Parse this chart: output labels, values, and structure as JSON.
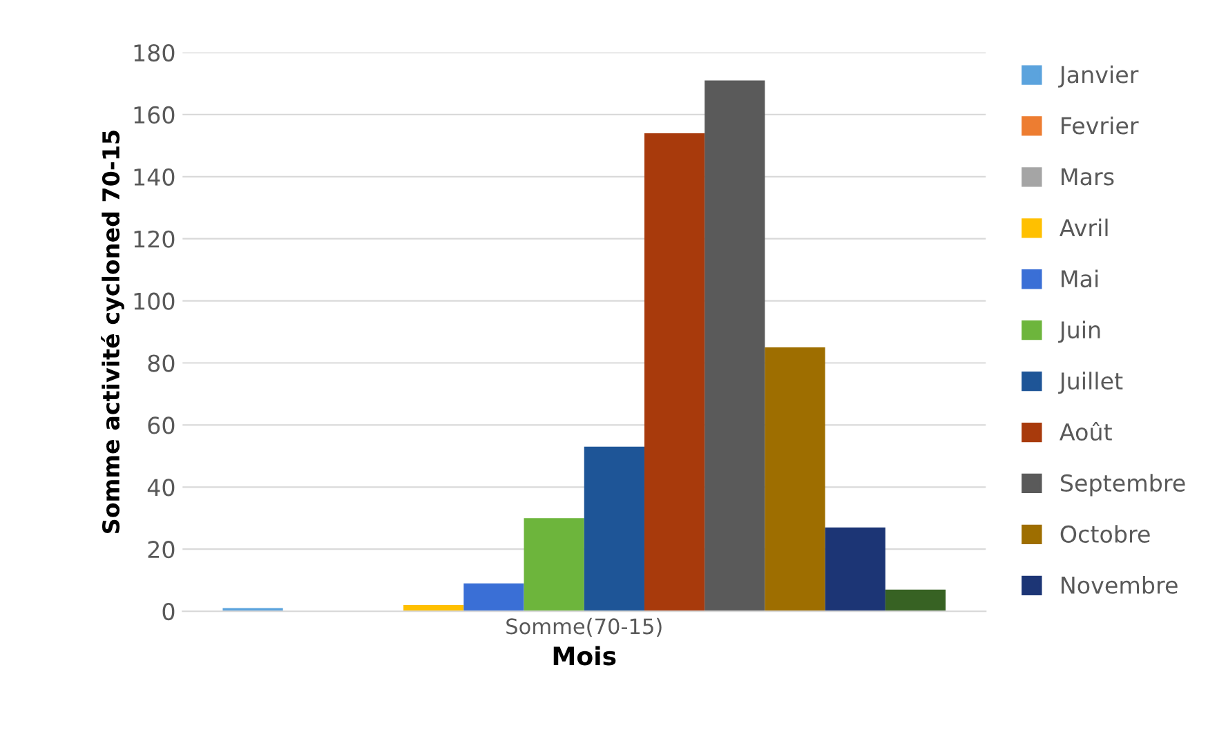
{
  "chart_data": {
    "type": "bar",
    "xlabel": "Mois",
    "ylabel": "Somme activité cycloned 70-15",
    "categories": [
      "Somme(70-15)"
    ],
    "series": [
      {
        "name": "Janvier",
        "color": "#5ba3dd",
        "values": [
          1
        ]
      },
      {
        "name": "Fevrier",
        "color": "#ed7d31",
        "values": [
          0
        ]
      },
      {
        "name": "Mars",
        "color": "#a5a5a5",
        "values": [
          0
        ]
      },
      {
        "name": "Avril",
        "color": "#ffc000",
        "values": [
          2
        ]
      },
      {
        "name": "Mai",
        "color": "#3a6fd6",
        "values": [
          9
        ]
      },
      {
        "name": "Juin",
        "color": "#6db53c",
        "values": [
          30
        ]
      },
      {
        "name": "Juillet",
        "color": "#1e5597",
        "values": [
          53
        ]
      },
      {
        "name": "Août",
        "color": "#a83a0c",
        "values": [
          154
        ]
      },
      {
        "name": "Septembre",
        "color": "#5a5a5a",
        "values": [
          171
        ]
      },
      {
        "name": "Octobre",
        "color": "#9e6e00",
        "values": [
          85
        ]
      },
      {
        "name": "Novembre",
        "color": "#1c3575",
        "values": [
          27
        ]
      },
      {
        "color": "#376223",
        "values": [
          7
        ]
      }
    ],
    "ylim": [
      0,
      180
    ],
    "yticks": [
      0,
      20,
      40,
      60,
      80,
      100,
      120,
      140,
      160,
      180
    ],
    "grid": "y",
    "legend": "right"
  }
}
